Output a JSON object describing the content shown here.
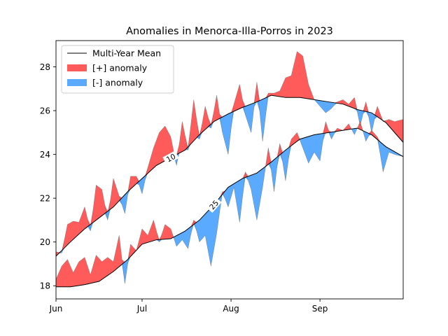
{
  "chart_data": {
    "type": "area",
    "title": "Anomalies in Menorca-Illa-Porros in 2023",
    "xlabel": "",
    "ylabel": "",
    "xlim": [
      "2023-06-01",
      "2023-09-30"
    ],
    "ylim": [
      17.4,
      29.2
    ],
    "x_ticks": [
      "Jun",
      "Jul",
      "Aug",
      "Sep"
    ],
    "y_ticks": [
      18,
      20,
      22,
      24,
      26,
      28
    ],
    "legend": {
      "placement": "top-left",
      "entries": [
        "Multi-Year Mean",
        "[+] anomaly",
        "[-] anomaly"
      ]
    },
    "colors": {
      "positive": "#ff5b5b",
      "negative": "#5aabff",
      "mean_line": "#000000"
    },
    "percentile_labels": [
      "10",
      "25"
    ],
    "series": [
      {
        "name": "Multi-Year Mean",
        "role": "upper",
        "line_label": "10",
        "points": [
          [
            "2023-06-01",
            19.35
          ],
          [
            "2023-06-06",
            20.0
          ],
          [
            "2023-06-11",
            20.6
          ],
          [
            "2023-06-16",
            21.1
          ],
          [
            "2023-06-21",
            21.6
          ],
          [
            "2023-06-26",
            22.3
          ],
          [
            "2023-07-01",
            22.9
          ],
          [
            "2023-07-06",
            23.5
          ],
          [
            "2023-07-11",
            23.85
          ],
          [
            "2023-07-16",
            24.2
          ],
          [
            "2023-07-21",
            24.9
          ],
          [
            "2023-07-26",
            25.5
          ],
          [
            "2023-07-31",
            25.85
          ],
          [
            "2023-08-05",
            26.15
          ],
          [
            "2023-08-10",
            26.4
          ],
          [
            "2023-08-15",
            26.7
          ],
          [
            "2023-08-20",
            26.6
          ],
          [
            "2023-08-25",
            26.6
          ],
          [
            "2023-08-30",
            26.5
          ],
          [
            "2023-09-04",
            26.4
          ],
          [
            "2023-09-09",
            26.3
          ],
          [
            "2023-09-14",
            26.05
          ],
          [
            "2023-09-19",
            25.9
          ],
          [
            "2023-09-24",
            25.45
          ],
          [
            "2023-09-30",
            24.55
          ]
        ]
      },
      {
        "name": "Multi-Year Mean",
        "role": "lower",
        "line_label": "25",
        "points": [
          [
            "2023-06-01",
            17.95
          ],
          [
            "2023-06-06",
            17.95
          ],
          [
            "2023-06-11",
            18.05
          ],
          [
            "2023-06-16",
            18.2
          ],
          [
            "2023-06-21",
            18.65
          ],
          [
            "2023-06-26",
            19.2
          ],
          [
            "2023-07-01",
            19.9
          ],
          [
            "2023-07-06",
            20.1
          ],
          [
            "2023-07-11",
            20.15
          ],
          [
            "2023-07-16",
            20.5
          ],
          [
            "2023-07-21",
            21.0
          ],
          [
            "2023-07-26",
            21.7
          ],
          [
            "2023-07-31",
            22.5
          ],
          [
            "2023-08-05",
            22.9
          ],
          [
            "2023-08-10",
            23.15
          ],
          [
            "2023-08-15",
            23.65
          ],
          [
            "2023-08-20",
            24.2
          ],
          [
            "2023-08-25",
            24.7
          ],
          [
            "2023-08-30",
            24.9
          ],
          [
            "2023-09-04",
            25.0
          ],
          [
            "2023-09-09",
            25.1
          ],
          [
            "2023-09-14",
            25.2
          ],
          [
            "2023-09-19",
            24.9
          ],
          [
            "2023-09-24",
            24.35
          ],
          [
            "2023-09-30",
            23.9
          ]
        ]
      },
      {
        "name": "",
        "role": "observed-upper",
        "points": [
          [
            "2023-06-01",
            19.55
          ],
          [
            "2023-06-03",
            19.5
          ],
          [
            "2023-06-05",
            20.8
          ],
          [
            "2023-06-07",
            20.95
          ],
          [
            "2023-06-09",
            20.9
          ],
          [
            "2023-06-11",
            21.6
          ],
          [
            "2023-06-13",
            20.5
          ],
          [
            "2023-06-15",
            22.6
          ],
          [
            "2023-06-17",
            22.4
          ],
          [
            "2023-06-19",
            21.0
          ],
          [
            "2023-06-21",
            22.9
          ],
          [
            "2023-06-23",
            22.1
          ],
          [
            "2023-06-25",
            21.3
          ],
          [
            "2023-06-27",
            23.0
          ],
          [
            "2023-06-29",
            23.0
          ],
          [
            "2023-07-01",
            22.2
          ],
          [
            "2023-07-03",
            23.4
          ],
          [
            "2023-07-05",
            24.3
          ],
          [
            "2023-07-07",
            25.0
          ],
          [
            "2023-07-09",
            25.3
          ],
          [
            "2023-07-11",
            24.8
          ],
          [
            "2023-07-13",
            23.5
          ],
          [
            "2023-07-15",
            25.5
          ],
          [
            "2023-07-17",
            24.2
          ],
          [
            "2023-07-19",
            26.5
          ],
          [
            "2023-07-21",
            24.7
          ],
          [
            "2023-07-23",
            26.2
          ],
          [
            "2023-07-25",
            25.2
          ],
          [
            "2023-07-27",
            26.7
          ],
          [
            "2023-07-29",
            25.0
          ],
          [
            "2023-07-31",
            24.0
          ],
          [
            "2023-08-02",
            26.3
          ],
          [
            "2023-08-04",
            27.2
          ],
          [
            "2023-08-06",
            25.8
          ],
          [
            "2023-08-08",
            25.0
          ],
          [
            "2023-08-10",
            27.3
          ],
          [
            "2023-08-12",
            24.6
          ],
          [
            "2023-08-14",
            26.8
          ],
          [
            "2023-08-16",
            26.8
          ],
          [
            "2023-08-18",
            26.9
          ],
          [
            "2023-08-20",
            27.5
          ],
          [
            "2023-08-22",
            27.6
          ],
          [
            "2023-08-24",
            28.7
          ],
          [
            "2023-08-26",
            28.5
          ],
          [
            "2023-08-28",
            27.2
          ],
          [
            "2023-08-30",
            26.5
          ],
          [
            "2023-09-01",
            26.2
          ],
          [
            "2023-09-03",
            25.9
          ],
          [
            "2023-09-05",
            26.1
          ],
          [
            "2023-09-07",
            26.4
          ],
          [
            "2023-09-09",
            26.5
          ],
          [
            "2023-09-11",
            26.3
          ],
          [
            "2023-09-13",
            26.6
          ],
          [
            "2023-09-15",
            25.3
          ],
          [
            "2023-09-17",
            26.4
          ],
          [
            "2023-09-19",
            25.0
          ],
          [
            "2023-09-21",
            26.2
          ],
          [
            "2023-09-23",
            25.5
          ],
          [
            "2023-09-25",
            25.6
          ],
          [
            "2023-09-27",
            25.5
          ],
          [
            "2023-09-30",
            25.6
          ]
        ]
      },
      {
        "name": "",
        "role": "observed-lower",
        "points": [
          [
            "2023-06-01",
            18.3
          ],
          [
            "2023-06-03",
            18.9
          ],
          [
            "2023-06-05",
            19.2
          ],
          [
            "2023-06-07",
            18.6
          ],
          [
            "2023-06-09",
            19.1
          ],
          [
            "2023-06-11",
            19.3
          ],
          [
            "2023-06-13",
            18.5
          ],
          [
            "2023-06-15",
            19.4
          ],
          [
            "2023-06-17",
            19.1
          ],
          [
            "2023-06-19",
            19.3
          ],
          [
            "2023-06-21",
            19.1
          ],
          [
            "2023-06-23",
            20.3
          ],
          [
            "2023-06-25",
            18.1
          ],
          [
            "2023-06-27",
            19.9
          ],
          [
            "2023-06-29",
            19.6
          ],
          [
            "2023-07-01",
            20.6
          ],
          [
            "2023-07-03",
            20.3
          ],
          [
            "2023-07-05",
            21.0
          ],
          [
            "2023-07-07",
            20.0
          ],
          [
            "2023-07-09",
            20.8
          ],
          [
            "2023-07-11",
            20.6
          ],
          [
            "2023-07-13",
            19.8
          ],
          [
            "2023-07-15",
            20.1
          ],
          [
            "2023-07-17",
            19.7
          ],
          [
            "2023-07-19",
            21.0
          ],
          [
            "2023-07-21",
            20.0
          ],
          [
            "2023-07-23",
            20.3
          ],
          [
            "2023-07-25",
            18.9
          ],
          [
            "2023-07-27",
            20.4
          ],
          [
            "2023-07-29",
            22.3
          ],
          [
            "2023-07-31",
            21.6
          ],
          [
            "2023-08-02",
            22.5
          ],
          [
            "2023-08-04",
            20.9
          ],
          [
            "2023-08-06",
            23.2
          ],
          [
            "2023-08-08",
            22.4
          ],
          [
            "2023-08-10",
            21.0
          ],
          [
            "2023-08-12",
            22.5
          ],
          [
            "2023-08-14",
            24.3
          ],
          [
            "2023-08-16",
            22.3
          ],
          [
            "2023-08-18",
            24.5
          ],
          [
            "2023-08-20",
            22.8
          ],
          [
            "2023-08-22",
            24.7
          ],
          [
            "2023-08-24",
            25.0
          ],
          [
            "2023-08-26",
            24.3
          ],
          [
            "2023-08-28",
            23.6
          ],
          [
            "2023-08-30",
            24.1
          ],
          [
            "2023-09-01",
            23.7
          ],
          [
            "2023-09-03",
            25.5
          ],
          [
            "2023-09-05",
            24.7
          ],
          [
            "2023-09-07",
            25.2
          ],
          [
            "2023-09-09",
            25.1
          ],
          [
            "2023-09-11",
            25.4
          ],
          [
            "2023-09-13",
            24.9
          ],
          [
            "2023-09-15",
            25.5
          ],
          [
            "2023-09-17",
            24.6
          ],
          [
            "2023-09-19",
            25.1
          ],
          [
            "2023-09-21",
            24.8
          ],
          [
            "2023-09-23",
            23.2
          ],
          [
            "2023-09-25",
            24.1
          ],
          [
            "2023-09-27",
            24.0
          ],
          [
            "2023-09-30",
            23.9
          ]
        ]
      }
    ]
  }
}
